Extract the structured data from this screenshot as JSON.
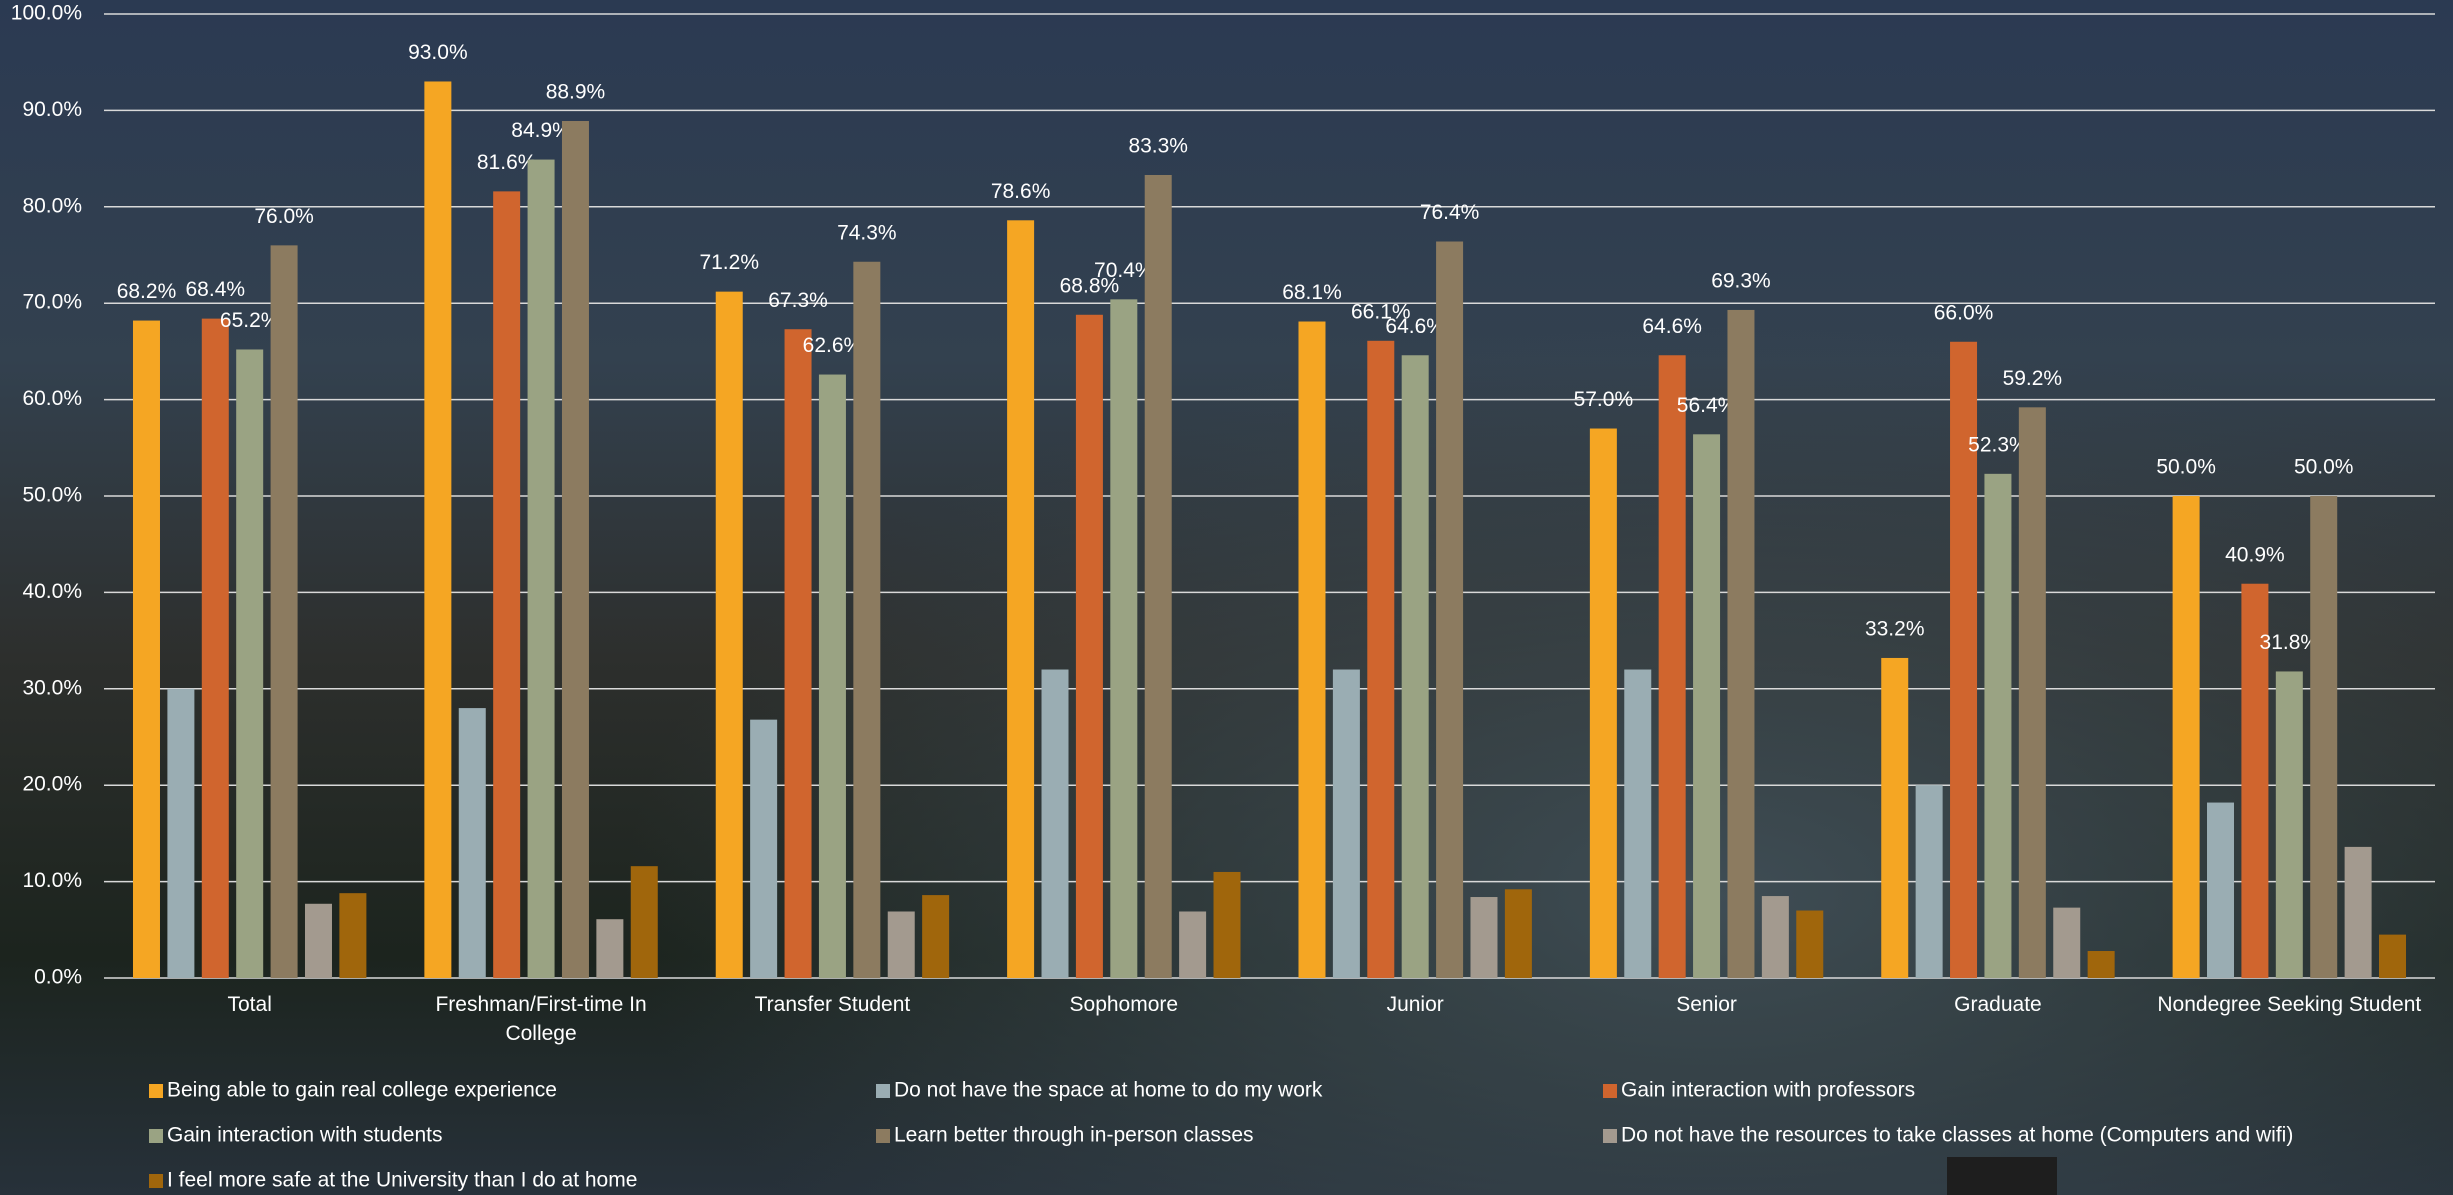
{
  "chart_data": {
    "type": "bar",
    "categories": [
      "Total",
      "Freshman/First-time In College",
      "Transfer Student",
      "Sophomore",
      "Junior",
      "Senior",
      "Graduate",
      "Nondegree Seeking Student"
    ],
    "series": [
      {
        "name": "Being able to gain real college experience",
        "color": "#f5a623",
        "values": [
          68.2,
          93.0,
          71.2,
          78.6,
          68.1,
          57.0,
          33.2,
          50.0
        ],
        "value_labels": [
          "68.2%",
          "93.0%",
          "71.2%",
          "78.6%",
          "68.1%",
          "57.0%",
          "33.2%",
          "50.0%"
        ]
      },
      {
        "name": "Do not have the space at home to do my work",
        "color": "#9aadb3",
        "values": [
          30.0,
          28.0,
          26.8,
          32.0,
          32.0,
          32.0,
          20.0,
          18.2
        ]
      },
      {
        "name": "Gain interaction with professors",
        "color": "#d0652e",
        "values": [
          68.4,
          81.6,
          67.3,
          68.8,
          66.1,
          64.6,
          66.0,
          40.9
        ],
        "value_labels": [
          "68.4%",
          "81.6%",
          "67.3%",
          "68.8%",
          "66.1%",
          "64.6%",
          "66.0%",
          "40.9%"
        ]
      },
      {
        "name": "Gain interaction with students",
        "color": "#9aa383",
        "values": [
          65.2,
          84.9,
          62.6,
          70.4,
          64.6,
          56.4,
          52.3,
          31.8
        ],
        "value_labels": [
          "65.2%",
          "84.9%",
          "62.6%",
          "70.4%",
          "64.6%",
          "56.4%",
          "52.3%",
          "31.8%"
        ]
      },
      {
        "name": "Learn better through in-person classes",
        "color": "#8c7b60",
        "values": [
          76.0,
          88.9,
          74.3,
          83.3,
          76.4,
          69.3,
          59.2,
          50.0
        ],
        "value_labels": [
          "76.0%",
          "88.9%",
          "74.3%",
          "83.3%",
          "76.4%",
          "69.3%",
          "59.2%",
          "50.0%"
        ]
      },
      {
        "name": "Do not have the resources to take classes at home (Computers and wifi)",
        "color": "#a39a8f",
        "values": [
          7.7,
          6.1,
          6.9,
          6.9,
          8.4,
          8.5,
          7.3,
          13.6
        ]
      },
      {
        "name": "I feel more safe at the University than I do at home",
        "color": "#a0660c",
        "values": [
          8.8,
          11.6,
          8.6,
          11.0,
          9.2,
          7.0,
          2.8,
          4.5
        ]
      }
    ],
    "ylim": [
      0,
      100
    ],
    "yticks": [
      {
        "value": 0,
        "label": "0.0%"
      },
      {
        "value": 10,
        "label": "10.0%"
      },
      {
        "value": 20,
        "label": "20.0%"
      },
      {
        "value": 30,
        "label": "30.0%"
      },
      {
        "value": 40,
        "label": "40.0%"
      },
      {
        "value": 50,
        "label": "50.0%"
      },
      {
        "value": 60,
        "label": "60.0%"
      },
      {
        "value": 70,
        "label": "70.0%"
      },
      {
        "value": 80,
        "label": "80.0%"
      },
      {
        "value": 90,
        "label": "90.0%"
      },
      {
        "value": 100,
        "label": "100.0%"
      }
    ],
    "grid": true
  }
}
